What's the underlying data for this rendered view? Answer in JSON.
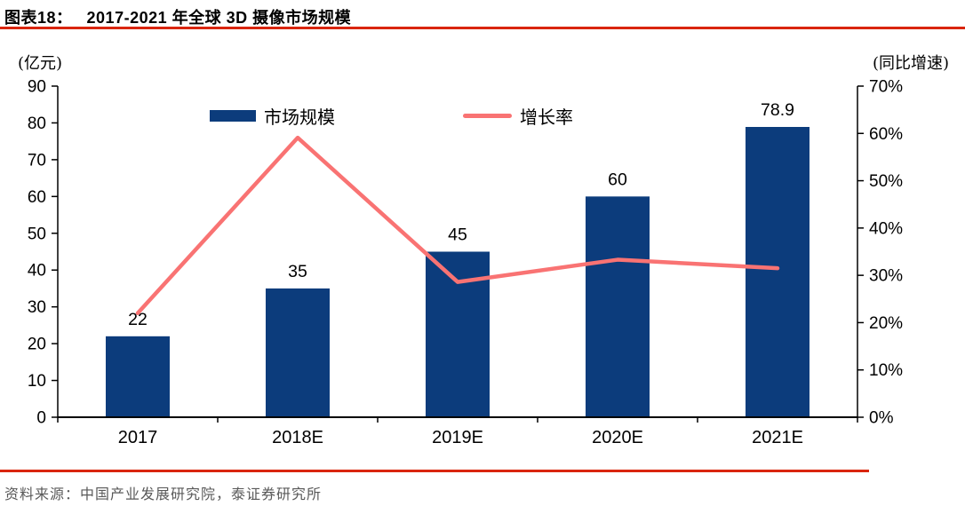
{
  "header": {
    "figure_label": "图表18：",
    "title": "2017-2021 年全球 3D 摄像市场规模"
  },
  "chart_data": {
    "type": "bar",
    "combo": "bar+line",
    "categories": [
      "2017",
      "2018E",
      "2019E",
      "2020E",
      "2021E"
    ],
    "series": [
      {
        "name": "市场规模",
        "type": "bar",
        "axis": "left",
        "values": [
          22,
          35,
          45,
          60,
          78.9
        ],
        "data_labels": [
          "22",
          "35",
          "45",
          "60",
          "78.9"
        ],
        "color": "#0C3C7C"
      },
      {
        "name": "增长率",
        "type": "line",
        "axis": "right",
        "values_pct": [
          22,
          59.1,
          28.6,
          33.3,
          31.5
        ],
        "color": "#F97373"
      }
    ],
    "left_axis": {
      "title": "(亿元)",
      "min": 0,
      "max": 90,
      "step": 10
    },
    "right_axis": {
      "title": "(同比增速)",
      "min": 0,
      "max": 70,
      "step": 10,
      "suffix": "%"
    },
    "legend": {
      "items": [
        "市场规模",
        "增长率"
      ],
      "position": "top-inside"
    },
    "gridlines": false
  },
  "source": {
    "text": "资料来源：中国产业发展研究院，泰证券研究所"
  },
  "colors": {
    "bar": "#0C3C7C",
    "line": "#F97373",
    "rule_red": "#D92507",
    "axis_black": "#000000",
    "source_gray": "#595959"
  }
}
